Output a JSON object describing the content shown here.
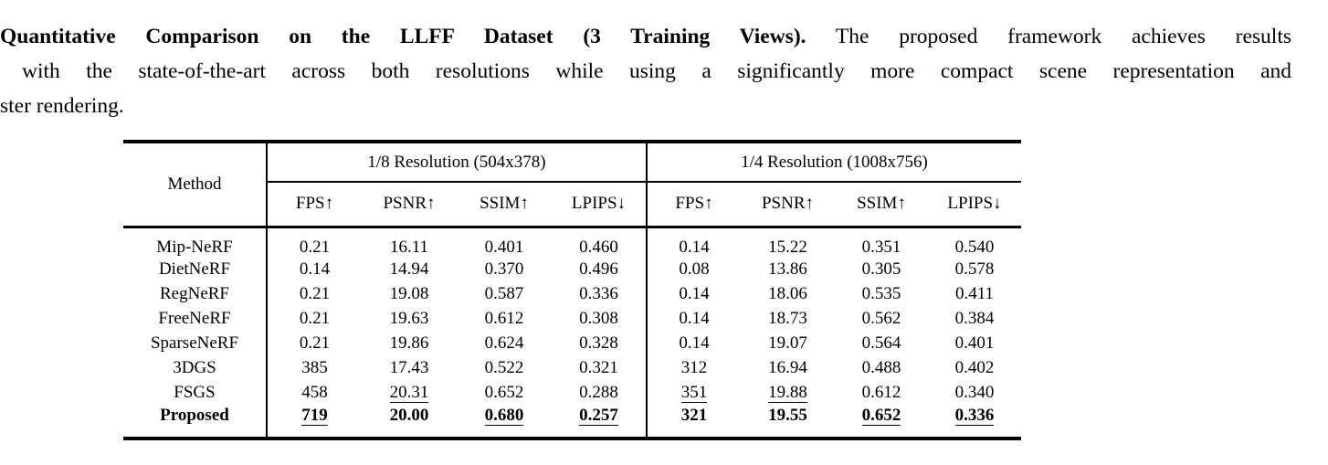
{
  "caption": {
    "line1_bold": "Quantitative Comparison on the LLFF Dataset (3 Training Views).",
    "line1_rest": "The proposed framework achieves results",
    "line2": "with the state-of-the-art across both resolutions while using a significantly more compact scene representation and",
    "line3": "ster rendering."
  },
  "table": {
    "method_header": "Method",
    "groups": [
      {
        "label": "1/8 Resolution (504x378)"
      },
      {
        "label": "1/4 Resolution (1008x756)"
      }
    ],
    "col_headers": [
      "FPS↑",
      "PSNR↑",
      "SSIM↑",
      "LPIPS↓",
      "FPS↑",
      "PSNR↑",
      "SSIM↑",
      "LPIPS↓"
    ],
    "rows": [
      {
        "method": "Mip-NeRF",
        "values": [
          "0.21",
          "16.11",
          "0.401",
          "0.460",
          "0.14",
          "15.22",
          "0.351",
          "0.540"
        ]
      },
      {
        "method": "DietNeRF",
        "values": [
          "0.14",
          "14.94",
          "0.370",
          "0.496",
          "0.08",
          "13.86",
          "0.305",
          "0.578"
        ]
      },
      {
        "method": "RegNeRF",
        "values": [
          "0.21",
          "19.08",
          "0.587",
          "0.336",
          "0.14",
          "18.06",
          "0.535",
          "0.411"
        ]
      },
      {
        "method": "FreeNeRF",
        "values": [
          "0.21",
          "19.63",
          "0.612",
          "0.308",
          "0.14",
          "18.73",
          "0.562",
          "0.384"
        ]
      },
      {
        "method": "SparseNeRF",
        "values": [
          "0.21",
          "19.86",
          "0.624",
          "0.328",
          "0.14",
          "19.07",
          "0.564",
          "0.401"
        ]
      },
      {
        "method": "3DGS",
        "values": [
          "385",
          "17.43",
          "0.522",
          "0.321",
          "312",
          "16.94",
          "0.488",
          "0.402"
        ]
      },
      {
        "method": "FSGS",
        "values": [
          "458",
          "20.31",
          "0.652",
          "0.288",
          "351",
          "19.88",
          "0.612",
          "0.340"
        ]
      },
      {
        "method": "Proposed",
        "values": [
          "719",
          "20.00",
          "0.680",
          "0.257",
          "321",
          "19.55",
          "0.652",
          "0.336"
        ]
      }
    ],
    "text_color": "#000000",
    "background_color": "#ffffff"
  }
}
